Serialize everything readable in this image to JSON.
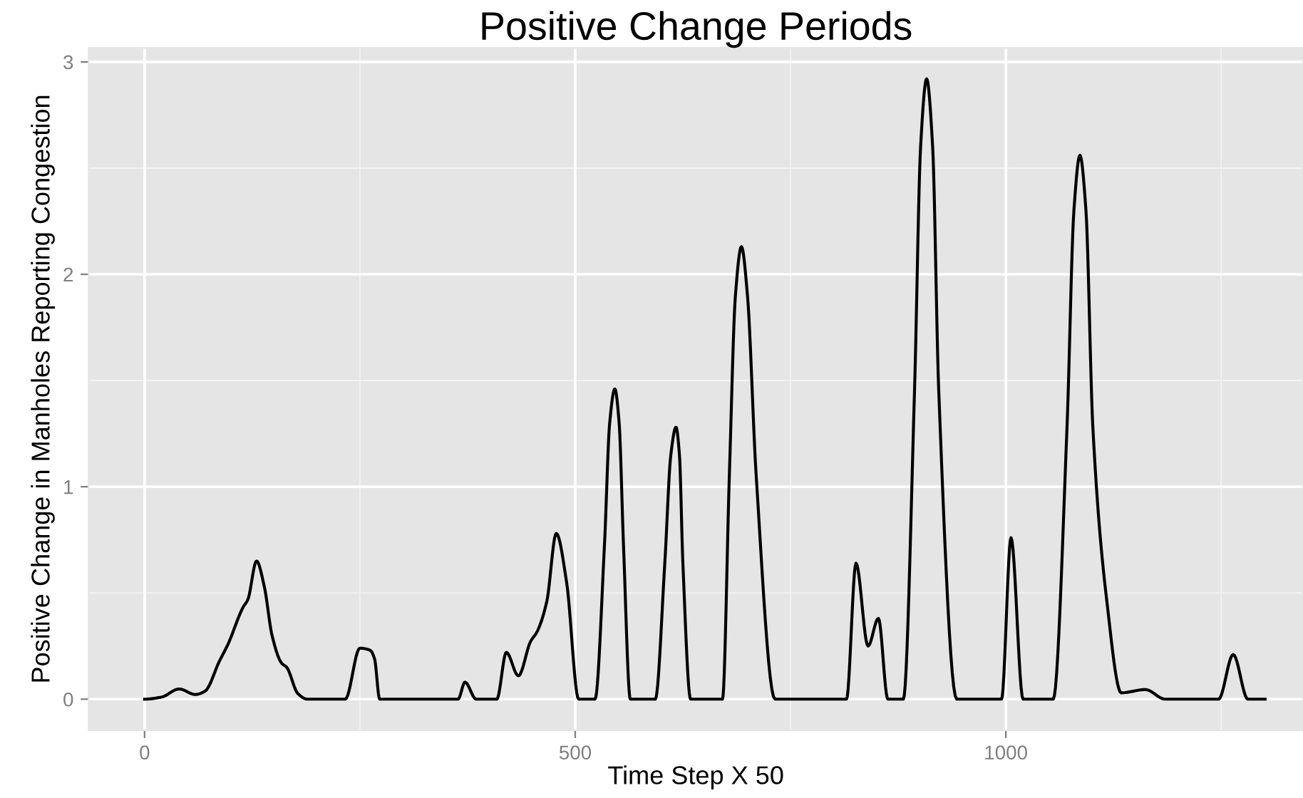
{
  "chart_data": {
    "type": "line",
    "title": "Positive Change Periods",
    "xlabel": "Time Step X 50",
    "ylabel": "Positive Change in Manholes Reporting Congestion",
    "series": [
      {
        "color": "#000000",
        "x": [
          0,
          20,
          40,
          59,
          70,
          87,
          97,
          114,
          120,
          130,
          139,
          148,
          159,
          165,
          178,
          189,
          233,
          250,
          262,
          267,
          273,
          364,
          372,
          385,
          409,
          420,
          434,
          448,
          456,
          467,
          478,
          490,
          504,
          523,
          534,
          540,
          546,
          551,
          556,
          564,
          593,
          604,
          611,
          617,
          621,
          625,
          634,
          671,
          679,
          686,
          693,
          700,
          710,
          732,
          815,
          826,
          840,
          852,
          863,
          881,
          894,
          901,
          908,
          915,
          922,
          943,
          995,
          1006,
          1020,
          1055,
          1071,
          1079,
          1086,
          1093,
          1101,
          1117,
          1134,
          1162,
          1185,
          1247,
          1264,
          1281,
          1301
        ],
        "values": [
          0,
          0.01,
          0.048,
          0.022,
          0.037,
          0.18,
          0.26,
          0.43,
          0.47,
          0.65,
          0.53,
          0.3,
          0.17,
          0.15,
          0.026,
          0,
          0,
          0.24,
          0.23,
          0.19,
          0,
          0,
          0.08,
          0,
          0,
          0.22,
          0.11,
          0.27,
          0.32,
          0.46,
          0.78,
          0.55,
          0,
          0,
          0.73,
          1.3,
          1.46,
          1.3,
          0.73,
          0,
          0,
          0.64,
          1.15,
          1.28,
          1.15,
          0.64,
          0,
          0,
          1.06,
          1.9,
          2.13,
          1.9,
          1.06,
          0,
          0,
          0.64,
          0.25,
          0.38,
          0,
          0,
          1.46,
          2.6,
          2.92,
          2.6,
          1.46,
          0,
          0,
          0.76,
          0,
          0,
          1.28,
          2.3,
          2.56,
          2.3,
          1.28,
          0.47,
          0.03,
          0.045,
          0,
          0,
          0.21,
          0,
          0
        ]
      }
    ],
    "xlim": [
      -65,
      1345
    ],
    "ylim": [
      -0.146,
      3.066
    ],
    "xticks": [
      0,
      500,
      1000
    ],
    "yticks": [
      0,
      1,
      2,
      3
    ],
    "grid": true
  }
}
